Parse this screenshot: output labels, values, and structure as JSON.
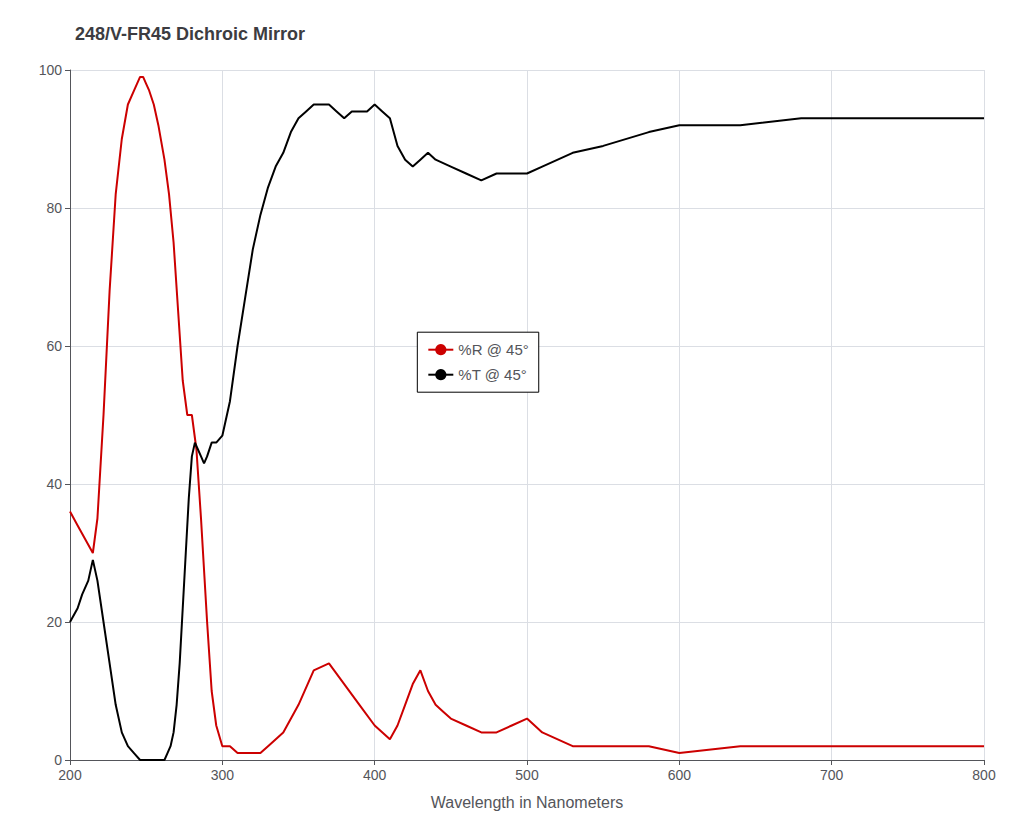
{
  "chart_data": {
    "type": "line",
    "title": "248/V-FR45 Dichroic Mirror",
    "xlabel": "Wavelength in Nanometers",
    "xlim": [
      200,
      800
    ],
    "ylim": [
      0,
      100
    ],
    "xticks": [
      200,
      300,
      400,
      500,
      600,
      700,
      800
    ],
    "yticks": [
      0,
      20,
      40,
      60,
      80,
      100
    ],
    "grid": true,
    "legend": "center",
    "series": [
      {
        "name": "%R @ 45°",
        "color": "#cc0000",
        "x": [
          200,
          205,
          210,
          215,
          218,
          222,
          226,
          230,
          234,
          238,
          242,
          246,
          248,
          250,
          252,
          255,
          258,
          262,
          265,
          268,
          271,
          274,
          277,
          280,
          283,
          286,
          290,
          293,
          296,
          300,
          305,
          310,
          315,
          320,
          325,
          330,
          340,
          350,
          360,
          370,
          380,
          390,
          400,
          410,
          415,
          420,
          425,
          430,
          435,
          440,
          445,
          450,
          460,
          470,
          480,
          490,
          500,
          510,
          530,
          550,
          580,
          600,
          640,
          700,
          750,
          800
        ],
        "values": [
          36,
          34,
          32,
          30,
          35,
          50,
          68,
          82,
          90,
          95,
          97,
          99,
          99,
          98,
          97,
          95,
          92,
          87,
          82,
          75,
          65,
          55,
          50,
          50,
          45,
          35,
          20,
          10,
          5,
          2,
          2,
          1,
          1,
          1,
          1,
          2,
          4,
          8,
          13,
          14,
          11,
          8,
          5,
          3,
          5,
          8,
          11,
          13,
          10,
          8,
          7,
          6,
          5,
          4,
          4,
          5,
          6,
          4,
          2,
          2,
          2,
          1,
          2,
          2,
          2,
          2
        ]
      },
      {
        "name": "%T @ 45°",
        "color": "#000000",
        "x": [
          200,
          205,
          208,
          212,
          215,
          218,
          222,
          226,
          230,
          234,
          238,
          242,
          246,
          250,
          254,
          258,
          260,
          262,
          264,
          266,
          268,
          270,
          272,
          274,
          276,
          278,
          280,
          282,
          284,
          286,
          288,
          290,
          293,
          296,
          300,
          305,
          310,
          315,
          320,
          325,
          330,
          335,
          340,
          345,
          350,
          355,
          360,
          365,
          370,
          375,
          380,
          385,
          390,
          395,
          400,
          405,
          410,
          415,
          420,
          425,
          430,
          435,
          440,
          450,
          460,
          470,
          480,
          490,
          500,
          510,
          530,
          550,
          580,
          600,
          640,
          680,
          700,
          750,
          800
        ],
        "values": [
          20,
          22,
          24,
          26,
          29,
          26,
          20,
          14,
          8,
          4,
          2,
          1,
          0,
          0,
          0,
          0,
          0,
          0,
          1,
          2,
          4,
          8,
          14,
          22,
          30,
          38,
          44,
          46,
          45,
          44,
          43,
          44,
          46,
          46,
          47,
          52,
          60,
          67,
          74,
          79,
          83,
          86,
          88,
          91,
          93,
          94,
          95,
          95,
          95,
          94,
          93,
          94,
          94,
          94,
          95,
          94,
          93,
          89,
          87,
          86,
          87,
          88,
          87,
          86,
          85,
          84,
          85,
          85,
          85,
          86,
          88,
          89,
          91,
          92,
          92,
          93,
          93,
          93,
          93
        ]
      }
    ]
  }
}
